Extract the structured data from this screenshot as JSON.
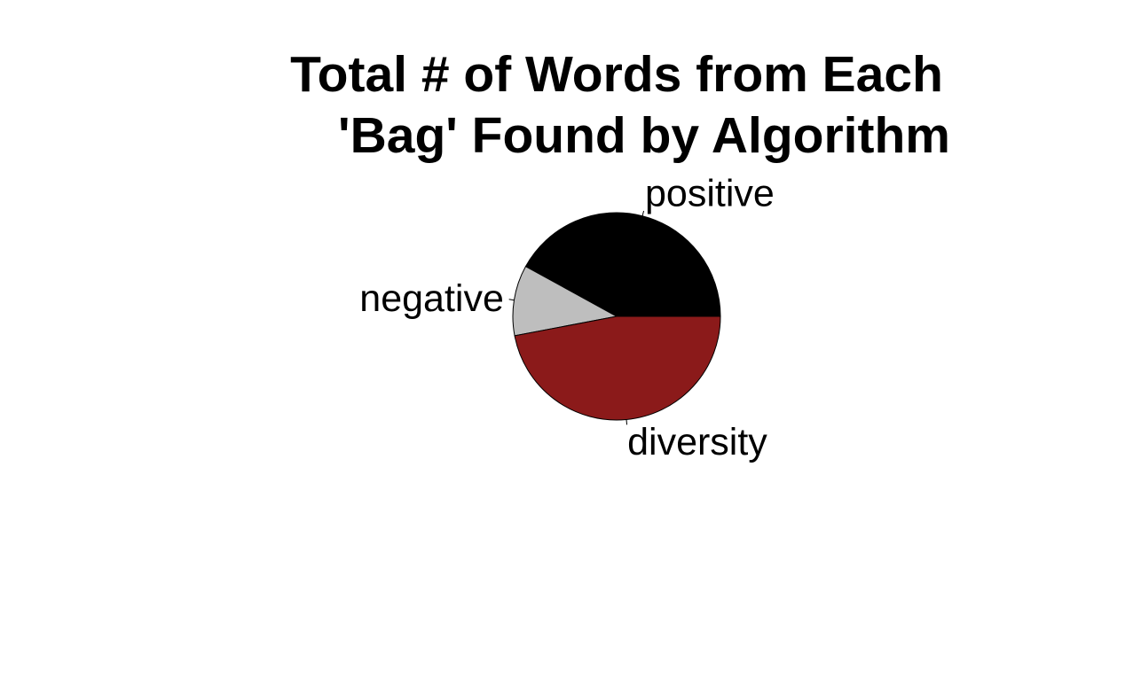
{
  "chart_data": {
    "type": "pie",
    "title_lines": [
      "Total # of Words from Each",
      "'Bag' Found by Algorithm"
    ],
    "slices": [
      {
        "label": "positive",
        "value": 42.0,
        "color": "#000000"
      },
      {
        "label": "negative",
        "value": 11.0,
        "color": "#bebebe"
      },
      {
        "label": "diversity",
        "value": 47.0,
        "color": "#8b1a1a"
      }
    ],
    "start_angle_deg": 0,
    "direction": "counterclockwise",
    "legend": "none"
  }
}
